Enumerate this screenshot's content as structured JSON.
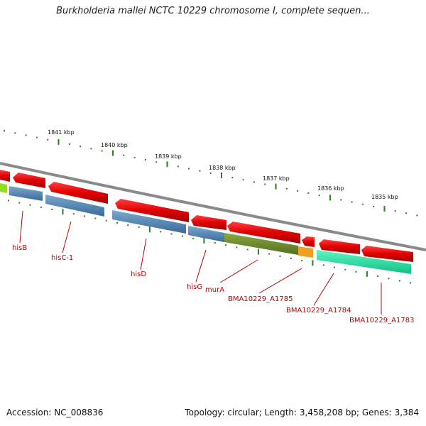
{
  "title": "Burkholderia mallei NCTC 10229 chromosome I, complete sequen...",
  "accession": "Accession: NC_008836",
  "topology": "Topology: circular; Length: 3,458,208 bp; Genes: 3,384",
  "kbp_labels": [
    "1841 kbp",
    "1840 kbp",
    "1839 kbp",
    "1838 kbp",
    "1837 kbp",
    "1836 kbp",
    "1835 kbp"
  ],
  "gene_labels": [
    "hisB",
    "hisC-1",
    "hisD",
    "hisG",
    "murA",
    "BMA10229_A1785",
    "BMA10229_A1784",
    "BMA10229_A1783"
  ],
  "colors": {
    "backbone": "#8a8a8a",
    "gene_arrow": "#e00000",
    "cds_blue": "#4a7fb0",
    "cds_olive": "#6d8a2a",
    "cds_orange": "#f0a020",
    "cds_teal": "#20e0a0",
    "cds_lime": "#90e020",
    "tick": "#2e7d1f",
    "label": "#c00000"
  }
}
